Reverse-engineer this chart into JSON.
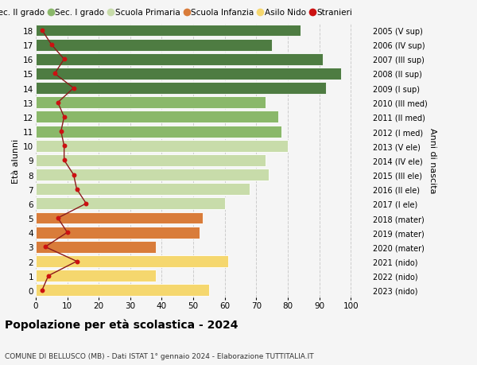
{
  "ages": [
    0,
    1,
    2,
    3,
    4,
    5,
    6,
    7,
    8,
    9,
    10,
    11,
    12,
    13,
    14,
    15,
    16,
    17,
    18
  ],
  "values": [
    55,
    38,
    61,
    38,
    52,
    53,
    60,
    68,
    74,
    73,
    80,
    78,
    77,
    73,
    92,
    97,
    91,
    75,
    84
  ],
  "bar_colors": [
    "#f5d76e",
    "#f5d76e",
    "#f5d76e",
    "#d97c3a",
    "#d97c3a",
    "#d97c3a",
    "#c8dcaa",
    "#c8dcaa",
    "#c8dcaa",
    "#c8dcaa",
    "#c8dcaa",
    "#8ab86a",
    "#8ab86a",
    "#8ab86a",
    "#4e7c42",
    "#4e7c42",
    "#4e7c42",
    "#4e7c42",
    "#4e7c42"
  ],
  "stranieri_x": [
    2,
    4,
    13,
    3,
    10,
    7,
    16,
    13,
    12,
    9,
    9,
    8,
    9,
    7,
    12,
    6,
    9,
    5,
    2
  ],
  "right_labels": [
    "2023 (nido)",
    "2022 (nido)",
    "2021 (nido)",
    "2020 (mater)",
    "2019 (mater)",
    "2018 (mater)",
    "2017 (I ele)",
    "2016 (II ele)",
    "2015 (III ele)",
    "2014 (IV ele)",
    "2013 (V ele)",
    "2012 (I med)",
    "2011 (II med)",
    "2010 (III med)",
    "2009 (I sup)",
    "2008 (II sup)",
    "2007 (III sup)",
    "2006 (IV sup)",
    "2005 (V sup)"
  ],
  "legend_labels": [
    "Sec. II grado",
    "Sec. I grado",
    "Scuola Primaria",
    "Scuola Infanzia",
    "Asilo Nido",
    "Stranieri"
  ],
  "legend_colors": [
    "#4e7c42",
    "#8ab86a",
    "#c8dcaa",
    "#d97c3a",
    "#f5d76e",
    "#cc1111"
  ],
  "title": "Popolazione per età scolastica - 2024",
  "subtitle": "COMUNE DI BELLUSCO (MB) - Dati ISTAT 1° gennaio 2024 - Elaborazione TUTTITALIA.IT",
  "ylabel": "Età alunni",
  "right_ylabel": "Anni di nascita",
  "xlabel_ticks": [
    0,
    10,
    20,
    30,
    40,
    50,
    60,
    70,
    80,
    90,
    100
  ],
  "xlim": [
    0,
    106
  ],
  "background_color": "#f5f5f5",
  "grid_color": "#cccccc"
}
